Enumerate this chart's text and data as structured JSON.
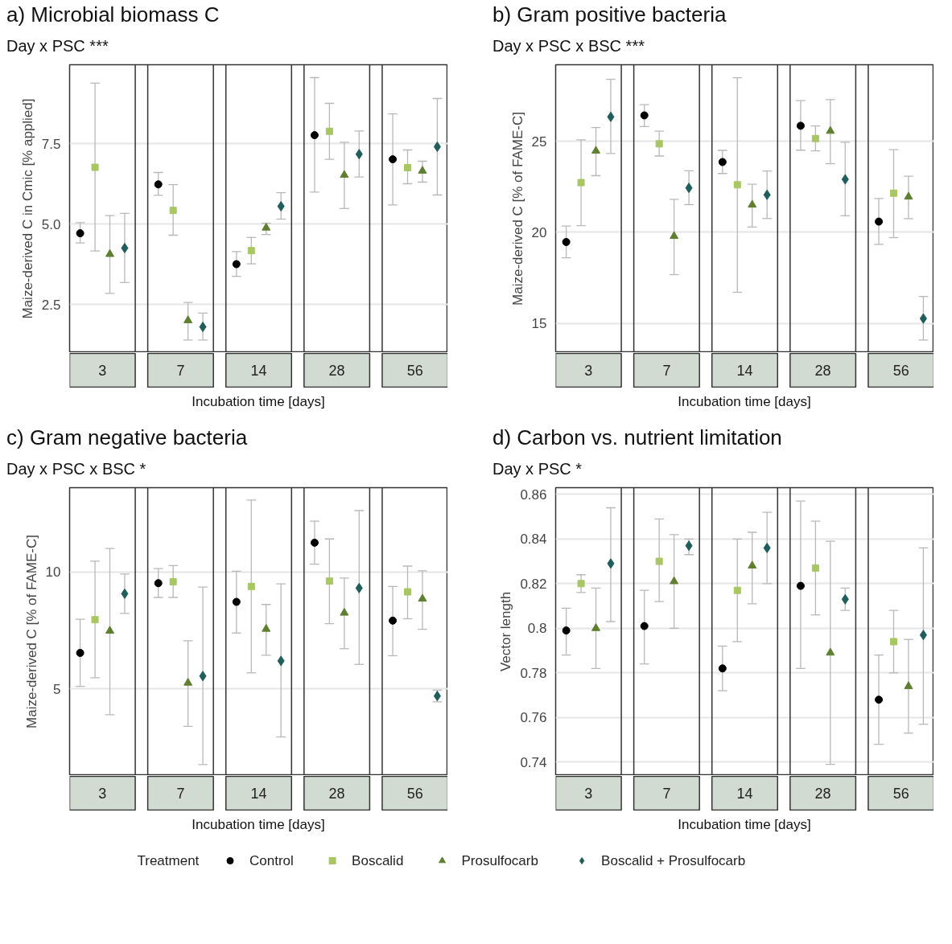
{
  "chart_data": [
    {
      "type": "scatter",
      "title": "a) Microbial biomass C",
      "subtitle": "Day x PSC ***",
      "xlabel": "Incubation time [days]",
      "ylabel": "Maize-derived C in Cmic [% applied]",
      "categories": [
        "3",
        "7",
        "14",
        "28",
        "56"
      ],
      "ylim": [
        1.0,
        9.95
      ],
      "yticks": [
        {
          "value": 2.5,
          "label": "2.5"
        },
        {
          "value": 5,
          "label": "5.0"
        },
        {
          "value": 7.5,
          "label": "7.5"
        }
      ],
      "grid": "y",
      "legend": "bottom",
      "legend_title": "Treatment",
      "series": [
        {
          "name": "Control",
          "color": "#000000",
          "marker": "circle",
          "values": [
            4.71,
            6.23,
            3.75,
            7.76,
            7.01
          ],
          "errors": [
            [
              4.41,
              5.04
            ],
            [
              5.89,
              6.6
            ],
            [
              3.37,
              4.14
            ],
            [
              5.99,
              9.55
            ],
            [
              5.59,
              8.42
            ]
          ]
        },
        {
          "name": "Boscalid",
          "color": "#a8c763",
          "marker": "square",
          "values": [
            6.76,
            5.42,
            4.17,
            7.88,
            6.75
          ],
          "errors": [
            [
              4.16,
              9.38
            ],
            [
              4.65,
              6.22
            ],
            [
              3.76,
              4.58
            ],
            [
              7.01,
              8.75
            ],
            [
              6.25,
              7.3
            ]
          ]
        },
        {
          "name": "Prosulfocarb",
          "color": "#5f7f30",
          "marker": "triangle",
          "values": [
            4.06,
            2.0,
            4.88,
            6.52,
            6.65
          ],
          "errors": [
            [
              2.84,
              5.26
            ],
            [
              1.39,
              2.56
            ],
            [
              4.67,
              5.02
            ],
            [
              5.48,
              7.54
            ],
            [
              6.3,
              6.95
            ]
          ]
        },
        {
          "name": "Boscalid + Prosulfocarb",
          "color": "#1f5e5b",
          "marker": "diamond",
          "values": [
            4.25,
            1.8,
            5.55,
            7.17,
            7.4
          ],
          "errors": [
            [
              3.18,
              5.33
            ],
            [
              1.39,
              2.23
            ],
            [
              5.15,
              5.97
            ],
            [
              6.46,
              7.89
            ],
            [
              5.9,
              8.9
            ]
          ]
        }
      ]
    },
    {
      "type": "scatter",
      "title": "b) Gram positive bacteria",
      "subtitle": "Day x PSC x BSC ***",
      "xlabel": "Incubation time [days]",
      "ylabel": "Maize-derived C [% of FAME-C]",
      "categories": [
        "3",
        "7",
        "14",
        "28",
        "56"
      ],
      "ylim": [
        13.4,
        29.2
      ],
      "yticks": [
        15,
        20,
        25
      ],
      "grid": "y",
      "series": [
        {
          "color": "#000000",
          "marker": "circle",
          "values": [
            19.47,
            26.42,
            23.86,
            25.85,
            20.59
          ],
          "errors": [
            [
              18.6,
              20.35
            ],
            [
              25.81,
              27.01
            ],
            [
              23.23,
              24.5
            ],
            [
              24.51,
              27.23
            ],
            [
              19.34,
              21.86
            ]
          ]
        },
        {
          "color": "#a8c763",
          "marker": "square",
          "values": [
            22.73,
            24.86,
            22.61,
            25.15,
            22.15
          ],
          "errors": [
            [
              20.37,
              25.08
            ],
            [
              24.19,
              25.55
            ],
            [
              16.71,
              28.49
            ],
            [
              24.47,
              25.84
            ],
            [
              19.71,
              24.54
            ]
          ]
        },
        {
          "color": "#5f7f30",
          "marker": "triangle",
          "values": [
            24.47,
            19.79,
            21.51,
            25.56,
            21.95
          ],
          "errors": [
            [
              23.11,
              25.75
            ],
            [
              17.68,
              21.81
            ],
            [
              20.29,
              22.64
            ],
            [
              23.77,
              27.29
            ],
            [
              20.75,
              23.08
            ]
          ]
        },
        {
          "color": "#1f5e5b",
          "marker": "diamond",
          "values": [
            26.34,
            22.44,
            22.06,
            22.91,
            15.27
          ],
          "errors": [
            [
              24.33,
              28.4
            ],
            [
              21.52,
              23.38
            ],
            [
              20.76,
              23.37
            ],
            [
              20.91,
              24.95
            ],
            [
              14.09,
              16.48
            ]
          ]
        }
      ]
    },
    {
      "type": "scatter",
      "title": "c) Gram negative bacteria",
      "subtitle": "Day x PSC x BSC *",
      "xlabel": "Incubation time [days]",
      "ylabel": "Maize-derived C [% of FAME-C]",
      "categories": [
        "3",
        "7",
        "14",
        "28",
        "56"
      ],
      "ylim": [
        1.3,
        13.6
      ],
      "yticks": [
        5,
        10
      ],
      "grid": "y",
      "series": [
        {
          "color": "#000000",
          "marker": "circle",
          "values": [
            6.54,
            9.52,
            8.72,
            11.25,
            7.92
          ],
          "errors": [
            [
              5.11,
              7.98
            ],
            [
              8.91,
              10.14
            ],
            [
              7.39,
              10.03
            ],
            [
              10.33,
              12.17
            ],
            [
              6.42,
              9.38
            ]
          ]
        },
        {
          "color": "#a8c763",
          "marker": "square",
          "values": [
            7.96,
            9.58,
            9.38,
            9.61,
            9.15
          ],
          "errors": [
            [
              5.48,
              10.46
            ],
            [
              8.91,
              10.27
            ],
            [
              5.69,
              13.07
            ],
            [
              7.79,
              11.41
            ],
            [
              8.0,
              10.25
            ]
          ]
        },
        {
          "color": "#5f7f30",
          "marker": "triangle",
          "values": [
            7.48,
            5.26,
            7.56,
            8.25,
            8.85
          ],
          "errors": [
            [
              3.9,
              11.0
            ],
            [
              3.4,
              7.06
            ],
            [
              6.44,
              8.61
            ],
            [
              6.72,
              9.74
            ],
            [
              7.55,
              10.05
            ]
          ]
        },
        {
          "color": "#1f5e5b",
          "marker": "diamond",
          "values": [
            9.07,
            5.55,
            6.2,
            9.31,
            4.7
          ],
          "errors": [
            [
              8.23,
              9.91
            ],
            [
              1.77,
              9.35
            ],
            [
              2.95,
              9.49
            ],
            [
              6.05,
              12.62
            ],
            [
              4.45,
              4.95
            ]
          ]
        }
      ]
    },
    {
      "type": "scatter",
      "title": "d) Carbon vs. nutrient limitation",
      "subtitle": "Day x PSC *",
      "xlabel": "Incubation time [days]",
      "ylabel": "Vector length",
      "categories": [
        "3",
        "7",
        "14",
        "28",
        "56"
      ],
      "ylim": [
        0.734,
        0.863
      ],
      "yticks": [
        0.74,
        0.76,
        0.78,
        0.8,
        0.82,
        0.84,
        0.86
      ],
      "grid": "y",
      "series": [
        {
          "color": "#000000",
          "marker": "circle",
          "values": [
            0.799,
            0.801,
            0.782,
            0.819,
            0.768
          ],
          "errors": [
            [
              0.788,
              0.809
            ],
            [
              0.784,
              0.817
            ],
            [
              0.772,
              0.792
            ],
            [
              0.782,
              0.857
            ],
            [
              0.748,
              0.788
            ]
          ]
        },
        {
          "color": "#a8c763",
          "marker": "square",
          "values": [
            0.82,
            0.83,
            0.817,
            0.827,
            0.794
          ],
          "errors": [
            [
              0.816,
              0.824
            ],
            [
              0.812,
              0.849
            ],
            [
              0.794,
              0.84
            ],
            [
              0.806,
              0.848
            ],
            [
              0.78,
              0.808
            ]
          ]
        },
        {
          "color": "#5f7f30",
          "marker": "triangle",
          "values": [
            0.8,
            0.821,
            0.828,
            0.789,
            0.774
          ],
          "errors": [
            [
              0.782,
              0.818
            ],
            [
              0.8,
              0.842
            ],
            [
              0.811,
              0.843
            ],
            [
              0.739,
              0.839
            ],
            [
              0.753,
              0.795
            ]
          ]
        },
        {
          "color": "#1f5e5b",
          "marker": "diamond",
          "values": [
            0.829,
            0.837,
            0.836,
            0.813,
            0.797
          ],
          "errors": [
            [
              0.803,
              0.854
            ],
            [
              0.833,
              0.84
            ],
            [
              0.82,
              0.852
            ],
            [
              0.808,
              0.818
            ],
            [
              0.757,
              0.836
            ]
          ]
        }
      ]
    }
  ]
}
